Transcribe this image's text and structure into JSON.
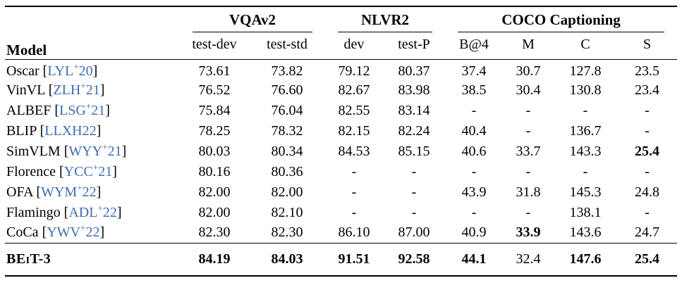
{
  "colors": {
    "citation": "#3E6DB5",
    "text": "#000000",
    "rule": "#000000"
  },
  "table": {
    "model_header": "Model",
    "groups": [
      {
        "label": "VQAv2",
        "span": 2
      },
      {
        "label": "NLVR2",
        "span": 2
      },
      {
        "label": "COCO Captioning",
        "span": 4
      }
    ],
    "subheaders": [
      "test-dev",
      "test-std",
      "dev",
      "test-P",
      "B@4",
      "M",
      "C",
      "S"
    ],
    "rows": [
      {
        "model": "Oscar",
        "cite": "LYL+20",
        "values": [
          "73.61",
          "73.82",
          "79.12",
          "80.37",
          "37.4",
          "30.7",
          "127.8",
          "23.5"
        ],
        "bold_values": []
      },
      {
        "model": "VinVL",
        "cite": "ZLH+21",
        "values": [
          "76.52",
          "76.60",
          "82.67",
          "83.98",
          "38.5",
          "30.4",
          "130.8",
          "23.4"
        ],
        "bold_values": []
      },
      {
        "model": "ALBEF",
        "cite": "LSG+21",
        "values": [
          "75.84",
          "76.04",
          "82.55",
          "83.14",
          "-",
          "-",
          "-",
          "-"
        ],
        "bold_values": []
      },
      {
        "model": "BLIP",
        "cite": "LLXH22",
        "values": [
          "78.25",
          "78.32",
          "82.15",
          "82.24",
          "40.4",
          "-",
          "136.7",
          "-"
        ],
        "bold_values": []
      },
      {
        "model": "SimVLM",
        "cite": "WYY+21",
        "values": [
          "80.03",
          "80.34",
          "84.53",
          "85.15",
          "40.6",
          "33.7",
          "143.3",
          "25.4"
        ],
        "bold_values": [
          7
        ]
      },
      {
        "model": "Florence",
        "cite": "YCC+21",
        "values": [
          "80.16",
          "80.36",
          "-",
          "-",
          "-",
          "-",
          "-",
          "-"
        ],
        "bold_values": []
      },
      {
        "model": "OFA",
        "cite": "WYM+22",
        "values": [
          "82.00",
          "82.00",
          "-",
          "-",
          "43.9",
          "31.8",
          "145.3",
          "24.8"
        ],
        "bold_values": []
      },
      {
        "model": "Flamingo",
        "cite": "ADL+22",
        "values": [
          "82.00",
          "82.10",
          "-",
          "-",
          "-",
          "-",
          "138.1",
          "-"
        ],
        "bold_values": []
      },
      {
        "model": "CoCa",
        "cite": "YWV+22",
        "values": [
          "82.30",
          "82.30",
          "86.10",
          "87.00",
          "40.9",
          "33.9",
          "143.6",
          "24.7"
        ],
        "bold_values": [
          5
        ]
      }
    ],
    "final_row": {
      "model": "BEiT-3",
      "cite": "",
      "values": [
        "84.19",
        "84.03",
        "91.51",
        "92.58",
        "44.1",
        "32.4",
        "147.6",
        "25.4"
      ],
      "bold_values": [
        0,
        1,
        2,
        3,
        4,
        6,
        7
      ]
    }
  }
}
